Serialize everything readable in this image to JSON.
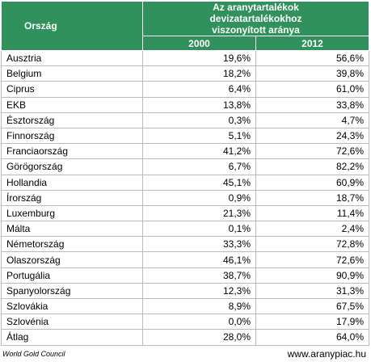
{
  "header": {
    "country": "Ország",
    "title": "Az aranytartalékok devizatartalékokhoz viszonyított aránya",
    "years": [
      "2000",
      "2012"
    ]
  },
  "table": {
    "rows": [
      [
        "Ausztria",
        "19,6%",
        "56,6%"
      ],
      [
        "Belgium",
        "18,2%",
        "39,8%"
      ],
      [
        "Ciprus",
        "6,4%",
        "61,0%"
      ],
      [
        "EKB",
        "13,8%",
        "33,8%"
      ],
      [
        "Észtország",
        "0,3%",
        "4,7%"
      ],
      [
        "Finnország",
        "5,1%",
        "24,3%"
      ],
      [
        "Franciaország",
        "41,2%",
        "72,6%"
      ],
      [
        "Görögország",
        "6,7%",
        "82,2%"
      ],
      [
        "Hollandia",
        "45,1%",
        "60,9%"
      ],
      [
        "Írország",
        "0,9%",
        "18,7%"
      ],
      [
        "Luxemburg",
        "21,3%",
        "11,4%"
      ],
      [
        "Málta",
        "0,1%",
        "2,4%"
      ],
      [
        "Németország",
        "33,3%",
        "72,8%"
      ],
      [
        "Olaszország",
        "46,1%",
        "72,6%"
      ],
      [
        "Portugália",
        "38,7%",
        "90,9%"
      ],
      [
        "Spanyolország",
        "12,3%",
        "31,3%"
      ],
      [
        "Szlovákia",
        "8,9%",
        "67,5%"
      ],
      [
        "Szlovénia",
        "0,0%",
        "17,9%"
      ],
      [
        "Átlag",
        "28,0%",
        "64,0%"
      ]
    ]
  },
  "footer": {
    "source": "World Gold Council",
    "site": "www.aranypiac.hu"
  }
}
